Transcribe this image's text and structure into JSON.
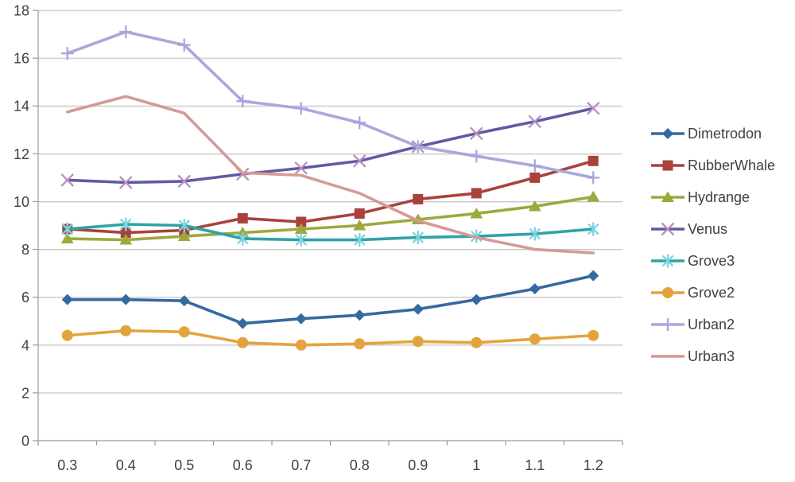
{
  "chart_data": {
    "type": "line",
    "title": "",
    "xlabel": "",
    "ylabel": "",
    "x_tick_labels": [
      "0.3",
      "0.4",
      "0.5",
      "0.6",
      "0.7",
      "0.8",
      "0.9",
      "1",
      "1.1",
      "1.2"
    ],
    "y_tick_labels": [
      "0",
      "2",
      "4",
      "6",
      "8",
      "10",
      "12",
      "14",
      "16",
      "18"
    ],
    "ylim": [
      0,
      18
    ],
    "y_tick_step": 2,
    "grid": true,
    "legend_position": "right",
    "series": [
      {
        "name": "Dimetrodon",
        "color": "#35699F",
        "marker": "diamond",
        "marker_color": "#35699F",
        "values": [
          5.9,
          5.9,
          5.85,
          4.9,
          5.1,
          5.25,
          5.5,
          5.9,
          6.35,
          6.9
        ]
      },
      {
        "name": "RubberWhale",
        "color": "#A9423E",
        "marker": "square",
        "marker_color": "#A9423E",
        "values": [
          8.85,
          8.7,
          8.8,
          9.3,
          9.15,
          9.5,
          10.1,
          10.35,
          11.0,
          11.7
        ]
      },
      {
        "name": "Hydrange",
        "color": "#9DA93C",
        "marker": "triangle",
        "marker_color": "#9DA93C",
        "values": [
          8.45,
          8.4,
          8.55,
          8.7,
          8.85,
          9.0,
          9.25,
          9.5,
          9.8,
          10.2
        ]
      },
      {
        "name": "Venus",
        "color": "#5F5CA2",
        "marker": "x",
        "marker_color": "#B98FC0",
        "values": [
          10.9,
          10.8,
          10.85,
          11.15,
          11.4,
          11.7,
          12.3,
          12.85,
          13.35,
          13.9
        ]
      },
      {
        "name": "Grove3",
        "color": "#2EA3A6",
        "marker": "asterisk",
        "marker_color": "#7ED3E0",
        "values": [
          8.85,
          9.05,
          9.0,
          8.45,
          8.4,
          8.4,
          8.5,
          8.55,
          8.65,
          8.85
        ]
      },
      {
        "name": "Grove2",
        "color": "#E4A33C",
        "marker": "circle",
        "marker_color": "#E4A33C",
        "values": [
          4.4,
          4.6,
          4.55,
          4.1,
          4.0,
          4.05,
          4.15,
          4.1,
          4.25,
          4.4
        ]
      },
      {
        "name": "Urban2",
        "color": "#A9A8DC",
        "marker": "plus",
        "marker_color": "#A9A5DD",
        "values": [
          16.2,
          17.1,
          16.55,
          14.2,
          13.9,
          13.3,
          12.3,
          11.9,
          11.5,
          11.0
        ]
      },
      {
        "name": "Urban3",
        "color": "#D69997",
        "marker": "none",
        "marker_color": "#D69997",
        "values": [
          13.75,
          14.4,
          13.7,
          11.2,
          11.1,
          10.35,
          9.2,
          8.5,
          8.0,
          7.85
        ]
      }
    ]
  },
  "colors": {
    "background": "#FFFFFF",
    "gridline": "#C6C6C6",
    "gridline_highlight": "#E9E9E9",
    "axis": "#9B9B9B",
    "text": "#404040"
  }
}
